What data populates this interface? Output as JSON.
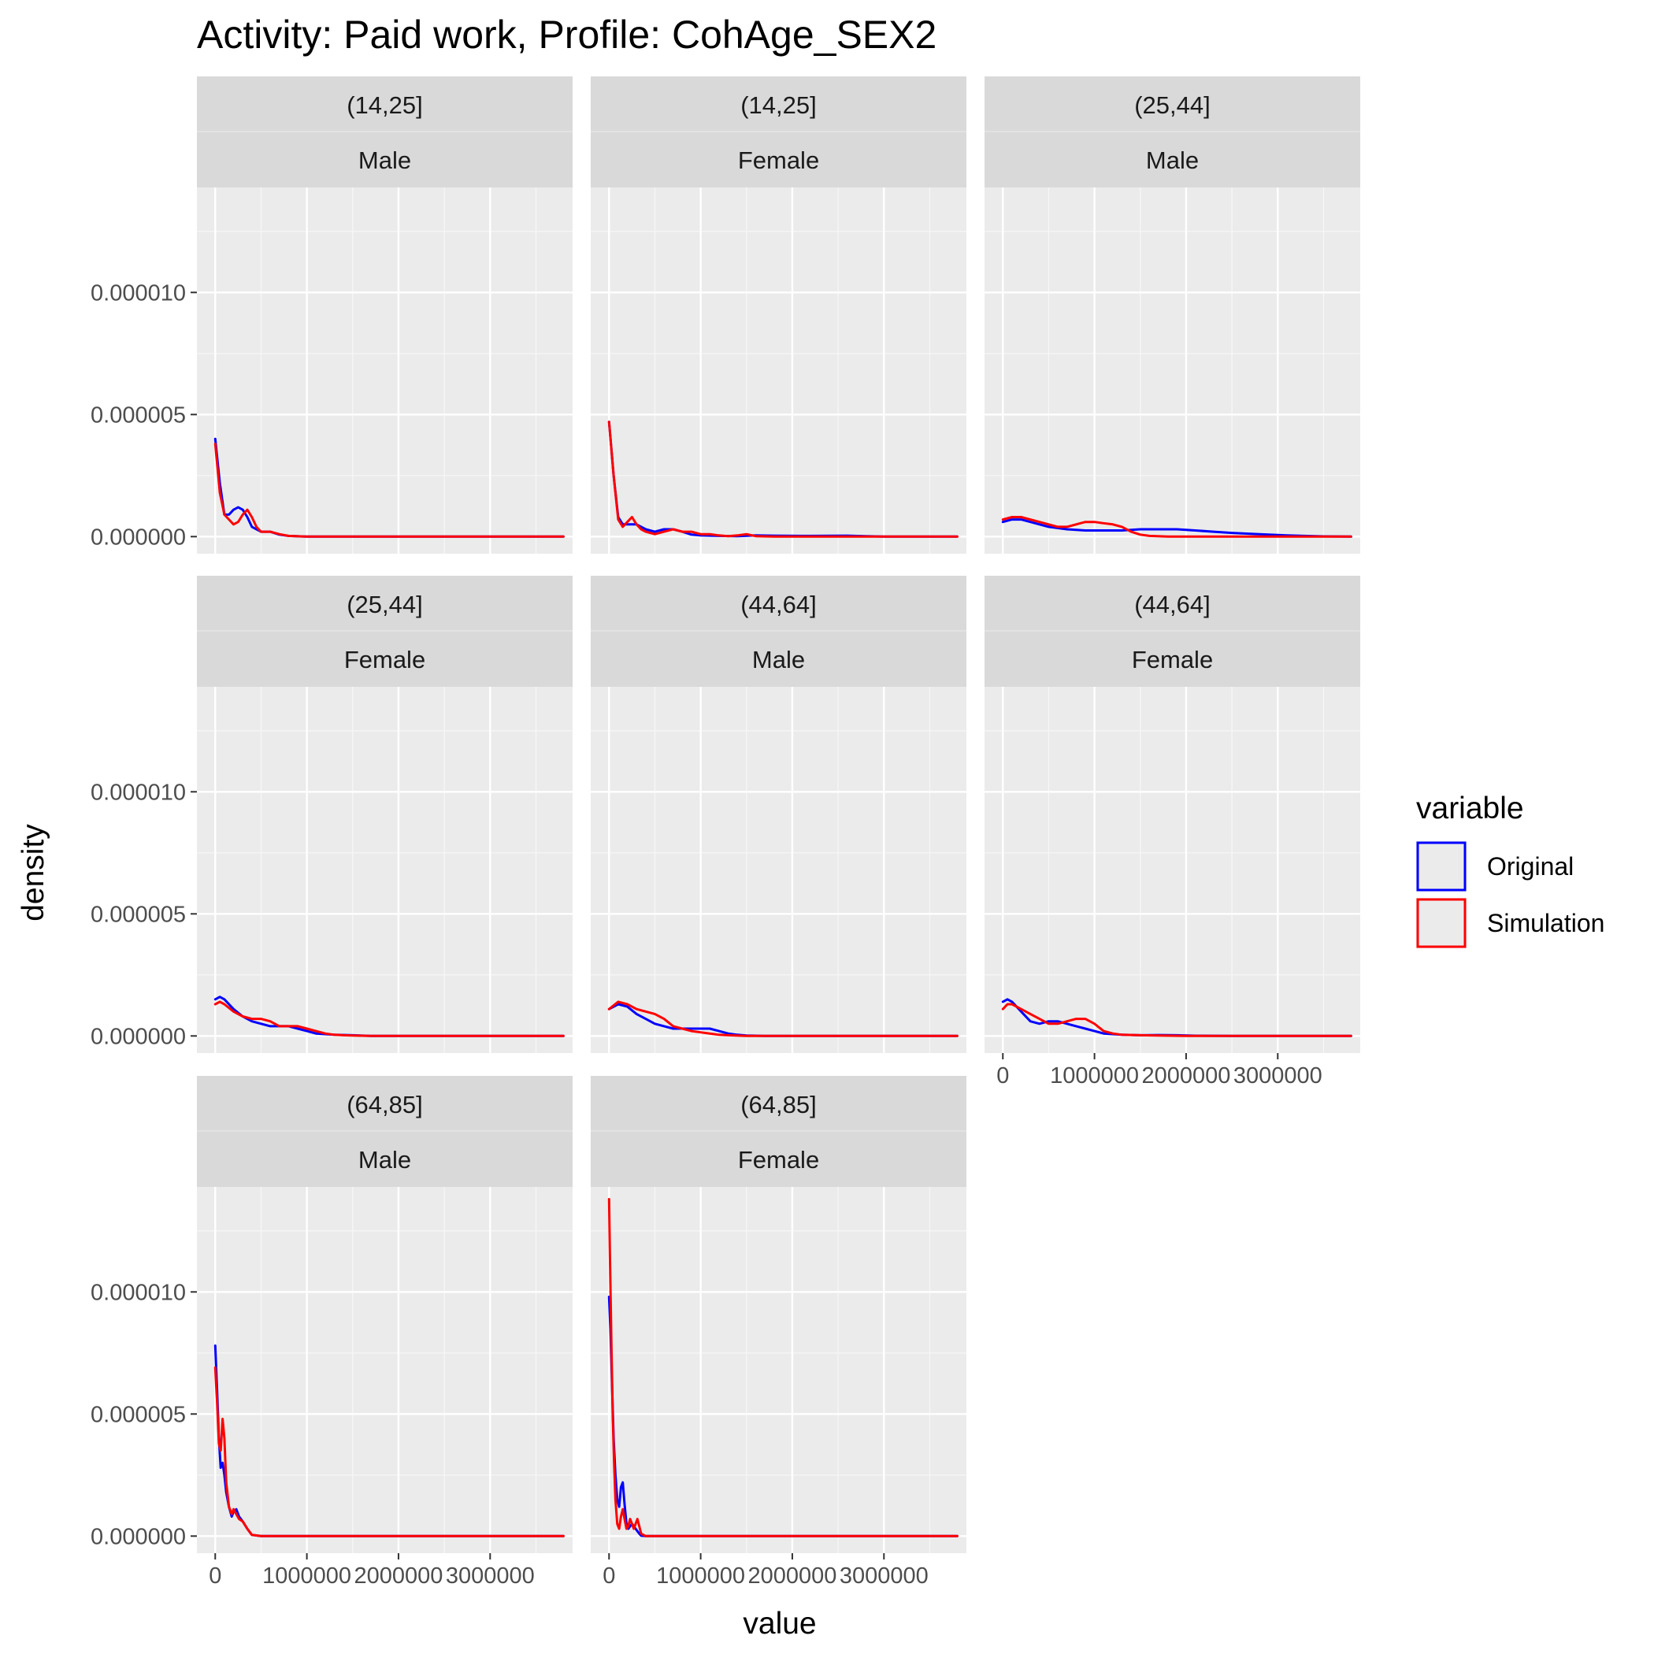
{
  "chart_data": {
    "type": "line",
    "title": "Activity: Paid work, Profile: CohAge_SEX2",
    "xlabel": "value",
    "ylabel": "density",
    "xlim": [
      -200000,
      3900000
    ],
    "ylim": [
      -7e-07,
      1.43e-05
    ],
    "x_ticks": [
      0,
      1000000,
      2000000,
      3000000
    ],
    "x_tick_labels": [
      "0",
      "1000000",
      "2000000",
      "3000000"
    ],
    "y_ticks": [
      0,
      5e-06,
      1e-05
    ],
    "y_tick_labels": [
      "0.000000",
      "0.000005",
      "0.000010"
    ],
    "grid": true,
    "legend": {
      "title": "variable",
      "position": "right",
      "entries": [
        {
          "name": "Original",
          "color": "#0000ff"
        },
        {
          "name": "Simulation",
          "color": "#ff0000"
        }
      ]
    },
    "panels": [
      {
        "age": "(14,25]",
        "sex": "Male",
        "series": [
          {
            "name": "Original",
            "color": "#0000ff",
            "x": [
              0,
              50000,
              100000,
              150000,
              200000,
              250000,
              300000,
              350000,
              400000,
              500000,
              600000,
              700000,
              800000,
              1000000,
              1500000,
              2000000,
              3000000,
              3800000
            ],
            "y": [
              4e-06,
              2.2e-06,
              9e-07,
              9e-07,
              1.1e-06,
              1.2e-06,
              1.1e-06,
              8e-07,
              4e-07,
              2e-07,
              2e-07,
              8e-08,
              3e-08,
              0.0,
              0,
              0,
              0,
              0
            ]
          },
          {
            "name": "Simulation",
            "color": "#ff0000",
            "x": [
              0,
              50000,
              100000,
              150000,
              200000,
              250000,
              300000,
              350000,
              400000,
              450000,
              500000,
              600000,
              700000,
              800000,
              1000000,
              1500000,
              2000000,
              3000000,
              3800000
            ],
            "y": [
              3.8e-06,
              1.8e-06,
              9e-07,
              7e-07,
              5e-07,
              6e-07,
              9e-07,
              1.1e-06,
              8e-07,
              4e-07,
              2e-07,
              2e-07,
              1e-07,
              3e-08,
              0.0,
              0,
              0,
              0,
              0
            ]
          }
        ]
      },
      {
        "age": "(14,25]",
        "sex": "Female",
        "series": [
          {
            "name": "Original",
            "color": "#0000ff",
            "x": [
              0,
              50000,
              100000,
              150000,
              200000,
              300000,
              400000,
              500000,
              600000,
              700000,
              800000,
              900000,
              1000000,
              1200000,
              1400000,
              1600000,
              1800000,
              2200000,
              2600000,
              2800000,
              3000000,
              3800000
            ],
            "y": [
              4.7e-06,
              2.5e-06,
              8e-07,
              5e-07,
              5e-07,
              5e-07,
              3e-07,
              2e-07,
              3e-07,
              3e-07,
              2e-07,
              8e-08,
              5e-08,
              3e-08,
              2e-08,
              5e-08,
              4e-08,
              3e-08,
              4e-08,
              2e-08,
              0.0,
              0
            ]
          },
          {
            "name": "Simulation",
            "color": "#ff0000",
            "x": [
              0,
              50000,
              100000,
              150000,
              200000,
              250000,
              300000,
              350000,
              400000,
              500000,
              600000,
              700000,
              800000,
              900000,
              1000000,
              1100000,
              1200000,
              1300000,
              1400000,
              1500000,
              1600000,
              1800000,
              2000000,
              3000000,
              3800000
            ],
            "y": [
              4.7e-06,
              2.5e-06,
              7e-07,
              4e-07,
              6e-07,
              8e-07,
              5e-07,
              3e-07,
              2e-07,
              1e-07,
              2e-07,
              3e-07,
              2e-07,
              2e-07,
              1e-07,
              1e-07,
              5e-08,
              2e-08,
              5e-08,
              1e-07,
              2e-08,
              0.0,
              0,
              0,
              0
            ]
          }
        ]
      },
      {
        "age": "(25,44]",
        "sex": "Male",
        "series": [
          {
            "name": "Original",
            "color": "#0000ff",
            "x": [
              0,
              100000,
              200000,
              300000,
              400000,
              500000,
              700000,
              900000,
              1100000,
              1300000,
              1500000,
              1700000,
              1900000,
              2100000,
              2300000,
              2500000,
              2800000,
              3100000,
              3500000,
              3800000
            ],
            "y": [
              6e-07,
              7e-07,
              7e-07,
              6e-07,
              5e-07,
              4e-07,
              3e-07,
              2.5e-07,
              2.5e-07,
              2.5e-07,
              3e-07,
              3e-07,
              3e-07,
              2.5e-07,
              2e-07,
              1.5e-07,
              1e-07,
              5e-08,
              1e-08,
              0
            ]
          },
          {
            "name": "Simulation",
            "color": "#ff0000",
            "x": [
              0,
              100000,
              200000,
              300000,
              400000,
              500000,
              600000,
              700000,
              800000,
              900000,
              1000000,
              1100000,
              1200000,
              1300000,
              1400000,
              1500000,
              1600000,
              1800000,
              2000000,
              3000000,
              3800000
            ],
            "y": [
              7e-07,
              8e-07,
              8e-07,
              7e-07,
              6e-07,
              5e-07,
              4e-07,
              4e-07,
              5e-07,
              6e-07,
              6e-07,
              5.5e-07,
              5e-07,
              4e-07,
              2e-07,
              8e-08,
              3e-08,
              0.0,
              0,
              0,
              0
            ]
          }
        ]
      },
      {
        "age": "(25,44]",
        "sex": "Female",
        "series": [
          {
            "name": "Original",
            "color": "#0000ff",
            "x": [
              0,
              50000,
              100000,
              200000,
              300000,
              400000,
              500000,
              600000,
              700000,
              800000,
              900000,
              1000000,
              1100000,
              1300000,
              1500000,
              1700000,
              2000000,
              3000000,
              3800000
            ],
            "y": [
              1.5e-06,
              1.6e-06,
              1.5e-06,
              1.1e-06,
              8e-07,
              6e-07,
              5e-07,
              4e-07,
              4e-07,
              4e-07,
              3e-07,
              2e-07,
              1e-07,
              5e-08,
              3e-08,
              0.0,
              0,
              0,
              0
            ]
          },
          {
            "name": "Simulation",
            "color": "#ff0000",
            "x": [
              0,
              50000,
              100000,
              200000,
              300000,
              400000,
              500000,
              600000,
              700000,
              800000,
              900000,
              1000000,
              1100000,
              1200000,
              1300000,
              1400000,
              1500000,
              1700000,
              2000000,
              3000000,
              3800000
            ],
            "y": [
              1.3e-06,
              1.4e-06,
              1.3e-06,
              1e-06,
              8e-07,
              7e-07,
              7e-07,
              6e-07,
              4e-07,
              4e-07,
              4e-07,
              3e-07,
              2e-07,
              1e-07,
              5e-08,
              3e-08,
              2e-08,
              0.0,
              0,
              0,
              0
            ]
          }
        ]
      },
      {
        "age": "(44,64]",
        "sex": "Male",
        "series": [
          {
            "name": "Original",
            "color": "#0000ff",
            "x": [
              0,
              100000,
              200000,
              300000,
              400000,
              500000,
              600000,
              700000,
              800000,
              900000,
              1000000,
              1100000,
              1200000,
              1300000,
              1400000,
              1500000,
              1700000,
              2000000,
              3000000,
              3800000
            ],
            "y": [
              1.1e-06,
              1.3e-06,
              1.2e-06,
              9e-07,
              7e-07,
              5e-07,
              4e-07,
              3e-07,
              3e-07,
              3e-07,
              3e-07,
              3e-07,
              2e-07,
              1e-07,
              5e-08,
              2e-08,
              0.0,
              0,
              0,
              0
            ]
          },
          {
            "name": "Simulation",
            "color": "#ff0000",
            "x": [
              0,
              100000,
              200000,
              300000,
              400000,
              500000,
              600000,
              700000,
              800000,
              900000,
              1000000,
              1100000,
              1200000,
              1300000,
              1500000,
              1700000,
              2000000,
              3000000,
              3800000
            ],
            "y": [
              1.1e-06,
              1.4e-06,
              1.3e-06,
              1.1e-06,
              1e-06,
              9e-07,
              7e-07,
              4e-07,
              3e-07,
              2e-07,
              1.5e-07,
              1e-07,
              5e-08,
              3e-08,
              0.0,
              0,
              0,
              0,
              0
            ]
          }
        ]
      },
      {
        "age": "(44,64]",
        "sex": "Female",
        "series": [
          {
            "name": "Original",
            "color": "#0000ff",
            "x": [
              0,
              50000,
              100000,
              200000,
              300000,
              400000,
              500000,
              600000,
              700000,
              800000,
              900000,
              1000000,
              1100000,
              1300000,
              1500000,
              1700000,
              1900000,
              2100000,
              2500000,
              3000000,
              3800000
            ],
            "y": [
              1.4e-06,
              1.5e-06,
              1.4e-06,
              1e-06,
              6e-07,
              5e-07,
              6e-07,
              6e-07,
              5e-07,
              4e-07,
              3e-07,
              2e-07,
              1e-07,
              5e-08,
              3e-08,
              4e-08,
              3e-08,
              1e-08,
              0.0,
              0,
              0
            ]
          },
          {
            "name": "Simulation",
            "color": "#ff0000",
            "x": [
              0,
              50000,
              100000,
              200000,
              300000,
              400000,
              500000,
              600000,
              700000,
              800000,
              900000,
              1000000,
              1100000,
              1200000,
              1300000,
              1500000,
              1700000,
              2000000,
              3000000,
              3800000
            ],
            "y": [
              1.1e-06,
              1.3e-06,
              1.3e-06,
              1.1e-06,
              9e-07,
              7e-07,
              5e-07,
              5e-07,
              6e-07,
              7e-07,
              7e-07,
              5e-07,
              2e-07,
              1e-07,
              5e-08,
              3e-08,
              2e-08,
              0.0,
              0,
              0
            ]
          }
        ]
      },
      {
        "age": "(64,85]",
        "sex": "Male",
        "series": [
          {
            "name": "Original",
            "color": "#0000ff",
            "x": [
              0,
              20000,
              40000,
              60000,
              80000,
              100000,
              120000,
              150000,
              180000,
              200000,
              230000,
              260000,
              300000,
              350000,
              400000,
              500000,
              1000000,
              2000000,
              3000000,
              3800000
            ],
            "y": [
              7.8e-06,
              6e-06,
              4e-06,
              2.8e-06,
              3e-06,
              2.5e-06,
              1.8e-06,
              1.2e-06,
              8e-07,
              1e-06,
              1.1e-06,
              8e-07,
              6e-07,
              3e-07,
              5e-08,
              0.0,
              0,
              0,
              0,
              0
            ]
          },
          {
            "name": "Simulation",
            "color": "#ff0000",
            "x": [
              0,
              20000,
              40000,
              60000,
              80000,
              100000,
              120000,
              150000,
              180000,
              200000,
              230000,
              260000,
              300000,
              350000,
              400000,
              500000,
              1000000,
              2000000,
              3000000,
              3800000
            ],
            "y": [
              6.9e-06,
              5.5e-06,
              3.8e-06,
              3.5e-06,
              4.8e-06,
              4e-06,
              2.2e-06,
              1.2e-06,
              9e-07,
              1.1e-06,
              9e-07,
              7e-07,
              6e-07,
              3e-07,
              5e-08,
              0.0,
              0,
              0,
              0,
              0
            ]
          }
        ]
      },
      {
        "age": "(64,85]",
        "sex": "Female",
        "series": [
          {
            "name": "Original",
            "color": "#0000ff",
            "x": [
              0,
              15000,
              30000,
              50000,
              70000,
              90000,
              110000,
              130000,
              150000,
              170000,
              190000,
              210000,
              230000,
              250000,
              270000,
              290000,
              310000,
              330000,
              350000,
              400000,
              1000000,
              2000000,
              3000000,
              3800000
            ],
            "y": [
              9.8e-06,
              8.5e-06,
              6.5e-06,
              4e-06,
              2.5e-06,
              1.5e-06,
              1.2e-06,
              2e-06,
              2.2e-06,
              1.3e-06,
              5e-07,
              3e-07,
              4e-07,
              5e-07,
              4e-07,
              3e-07,
              2e-07,
              1e-07,
              2e-08,
              0.0,
              0,
              0,
              0,
              0
            ]
          },
          {
            "name": "Simulation",
            "color": "#ff0000",
            "x": [
              0,
              10000,
              25000,
              40000,
              55000,
              70000,
              90000,
              110000,
              130000,
              150000,
              170000,
              190000,
              210000,
              230000,
              250000,
              270000,
              290000,
              310000,
              330000,
              350000,
              400000,
              1000000,
              2000000,
              3000000,
              3800000
            ],
            "y": [
              1.38e-05,
              1.15e-05,
              8e-06,
              5e-06,
              3e-06,
              1.5e-06,
              5e-07,
              3e-07,
              8e-07,
              1.1e-06,
              7e-07,
              3e-07,
              4e-07,
              7e-07,
              5e-07,
              3e-07,
              5e-07,
              7e-07,
              4e-07,
              1e-07,
              0.0,
              0,
              0,
              0,
              0
            ]
          }
        ]
      }
    ]
  }
}
